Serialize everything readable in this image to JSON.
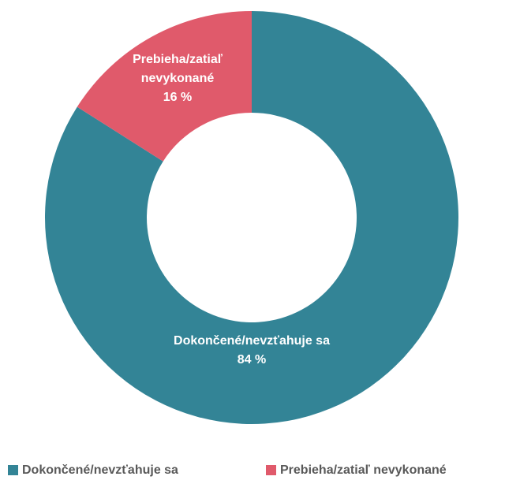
{
  "chart_data": {
    "type": "donut",
    "categories": [
      "Dokončené/nevzťahuje sa",
      "Prebieha/zatiaľ nevykonané"
    ],
    "values": [
      84,
      16
    ],
    "value_labels": [
      "84 %",
      "16 %"
    ],
    "colors": [
      "#338496",
      "#e05a6b"
    ],
    "legend": "bottom"
  }
}
